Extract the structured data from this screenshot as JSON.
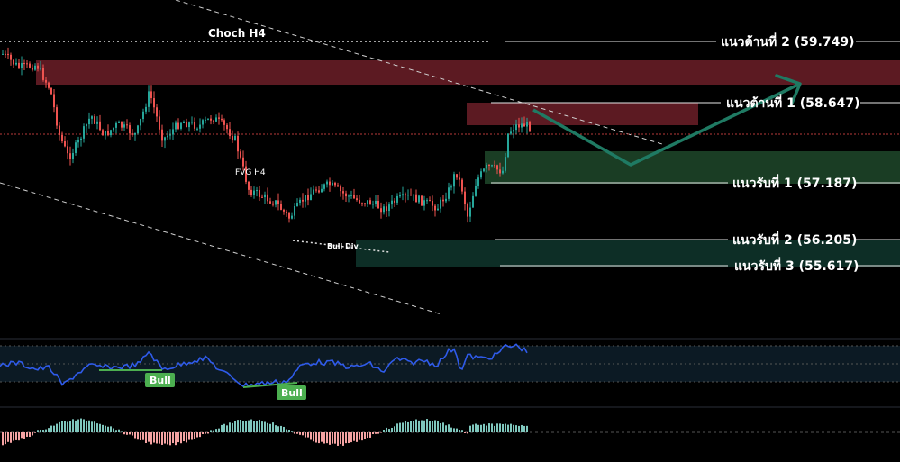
{
  "chart_data": {
    "type": "candlestick",
    "price_levels": [
      {
        "label": "แนวต้านที่ 2 (59.749)",
        "value": 59.749,
        "kind": "resistance"
      },
      {
        "label": "แนวต้านที่ 1 (58.647)",
        "value": 58.647,
        "kind": "resistance"
      },
      {
        "label": "แนวรับที่ 1 (57.187)",
        "value": 57.187,
        "kind": "support"
      },
      {
        "label": "แนวรับที่ 2 (56.205)",
        "value": 56.205,
        "kind": "support"
      },
      {
        "label": "แนวรับที่ 3 (55.617)",
        "value": 55.617,
        "kind": "support"
      }
    ],
    "annotations": {
      "choch": "Choch H4",
      "fvg": "FVG H4",
      "bull_div": "Bull Div",
      "bull_badge_1": "Bull",
      "bull_badge_2": "Bull"
    },
    "colors": {
      "bull_candle": "#26a69a",
      "bear_candle": "#ef5350",
      "resistance_zone": "#5c1a22",
      "support_zone": "#1a3d24",
      "support_zone_low": "#0d2e26",
      "rsi_line": "#2f5bea",
      "divergence_line": "#4caf50",
      "projection_arrow": "#1f7a63",
      "badge": "#4caf50"
    }
  }
}
